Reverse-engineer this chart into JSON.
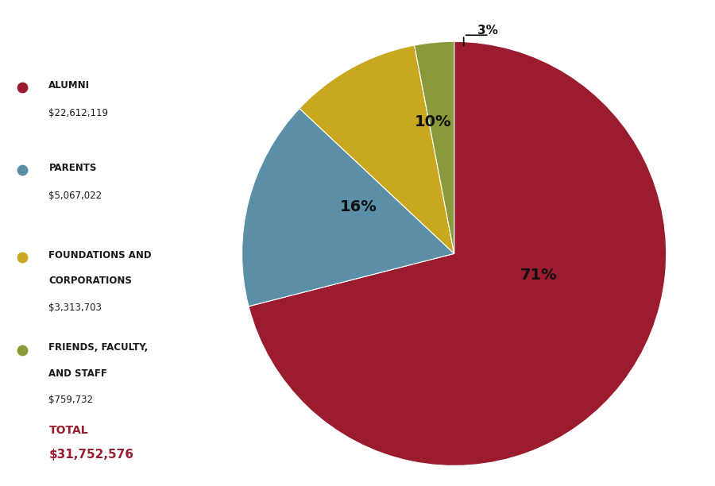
{
  "slices": [
    71,
    16,
    10,
    3
  ],
  "colors": [
    "#9b1c2e",
    "#5b8fa8",
    "#c9a820",
    "#8a9a3a"
  ],
  "legend_titles_line1": [
    "ALUMNI",
    "PARENTS",
    "FOUNDATIONS AND",
    "FRIENDS, FACULTY,"
  ],
  "legend_titles_line2": [
    "",
    "",
    "CORPORATIONS",
    "AND STAFF"
  ],
  "legend_amounts": [
    "$22,612,119",
    "$5,067,022",
    "$3,313,703",
    "$759,732"
  ],
  "total_label": "TOTAL",
  "total_amount": "$31,752,576",
  "total_color": "#9b1c2e",
  "bg_color": "#ffffff",
  "pct_labels": [
    "71%",
    "16%",
    "10%",
    "3%"
  ]
}
